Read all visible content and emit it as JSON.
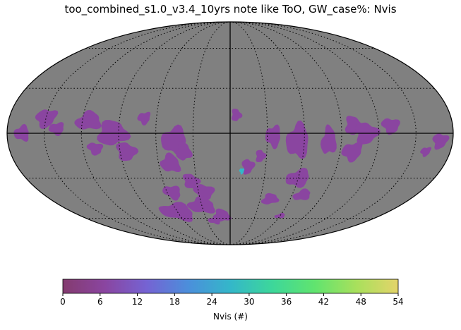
{
  "title": "too_combined_s1.0_v3.4_10yrs note like ToO, GW_case%: Nvis",
  "colorbar": {
    "label": "Nvis (#)",
    "ticks": [
      "0",
      "6",
      "12",
      "18",
      "24",
      "30",
      "36",
      "42",
      "48",
      "54"
    ],
    "min": 0,
    "max": 54,
    "colors": [
      "#843b6f",
      "#8a45a0",
      "#7563d3",
      "#4b8fdb",
      "#34b7c9",
      "#3dd79a",
      "#60e46f",
      "#a8e05c",
      "#e4d46a"
    ]
  },
  "map": {
    "projection": "mollweide",
    "background_color": "#808080",
    "grid": "dotted graticule",
    "typical_nvis_range": [
      0,
      12
    ],
    "max_region": "small cyan patch near lon -10, lat -25"
  }
}
